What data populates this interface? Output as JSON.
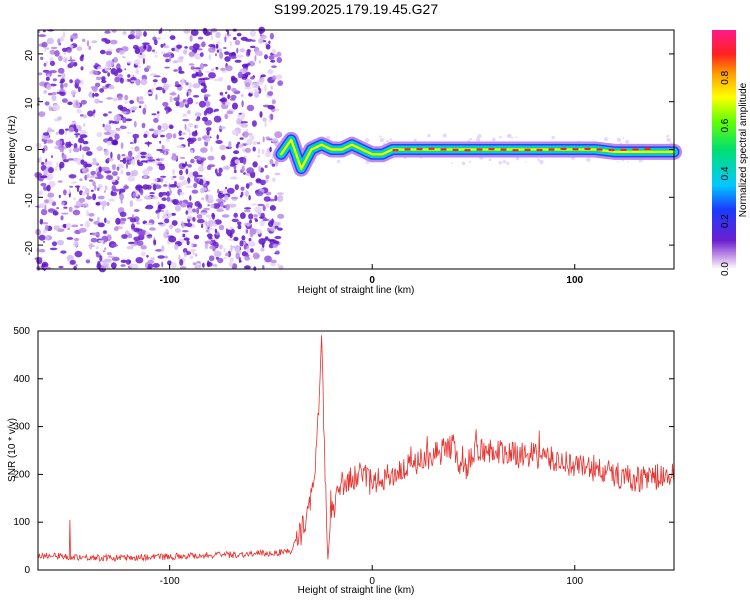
{
  "title": "S199.2025.179.19.45.G27",
  "top_panel": {
    "xlabel": "Height of straight line (km)",
    "ylabel": "Frequency (Hz)",
    "colorbar_label": "Normalized spectral amplitude",
    "colorbar_ticks": [
      "0.0",
      "0.2",
      "0.4",
      "0.6",
      "0.8"
    ]
  },
  "bottom_panel": {
    "xlabel": "Height of straight line (km)",
    "ylabel": "SNR (10 * v/v)"
  },
  "colors": {
    "snr_line": "#e8322e",
    "noise": "#7a2bd6"
  },
  "chart_data": [
    {
      "type": "heatmap",
      "title": "S199.2025.179.19.45.G27",
      "xlabel": "Height of straight line (km)",
      "ylabel": "Frequency (Hz)",
      "xlim": [
        -165,
        149
      ],
      "ylim": [
        -25,
        25
      ],
      "x_ticks": [
        -100,
        0,
        100
      ],
      "y_ticks": [
        -20,
        -10,
        0,
        10,
        20
      ],
      "colorbar": {
        "label": "Normalized spectral amplitude",
        "range": [
          0,
          1
        ],
        "ticks": [
          0.0,
          0.2,
          0.4,
          0.6,
          0.8
        ]
      },
      "noise_region_x": [
        -165,
        -45
      ],
      "signal_ridge": {
        "x": [
          -45,
          -40,
          -35,
          -30,
          -25,
          -20,
          -15,
          -10,
          -5,
          0,
          5,
          10,
          15,
          20,
          30,
          40,
          50,
          60,
          70,
          80,
          90,
          100,
          110,
          120,
          130,
          140,
          149
        ],
        "freq_hz": [
          -1,
          2,
          -4,
          0,
          1,
          0,
          0,
          1,
          0,
          -1,
          -1,
          0,
          0,
          0,
          0,
          0,
          0,
          0,
          0,
          0,
          0,
          0,
          0,
          -0.5,
          -0.5,
          -0.5,
          -0.5
        ]
      }
    },
    {
      "type": "line",
      "xlabel": "Height of straight line (km)",
      "ylabel": "SNR (10 * v/v)",
      "xlim": [
        -165,
        149
      ],
      "ylim": [
        0,
        500
      ],
      "x_ticks": [
        -100,
        0,
        100
      ],
      "y_ticks": [
        0,
        100,
        200,
        300,
        400,
        500
      ],
      "x": [
        -165,
        -150,
        -130,
        -110,
        -90,
        -70,
        -50,
        -40,
        -35,
        -30,
        -27,
        -25,
        -22,
        -20,
        -15,
        -10,
        -5,
        0,
        10,
        20,
        30,
        40,
        45,
        50,
        60,
        70,
        80,
        90,
        100,
        110,
        120,
        130,
        140,
        149
      ],
      "y": [
        30,
        28,
        25,
        27,
        30,
        32,
        35,
        40,
        80,
        150,
        280,
        470,
        20,
        120,
        180,
        190,
        200,
        180,
        200,
        220,
        240,
        260,
        200,
        250,
        250,
        240,
        240,
        230,
        220,
        210,
        200,
        190,
        195,
        195
      ]
    }
  ]
}
